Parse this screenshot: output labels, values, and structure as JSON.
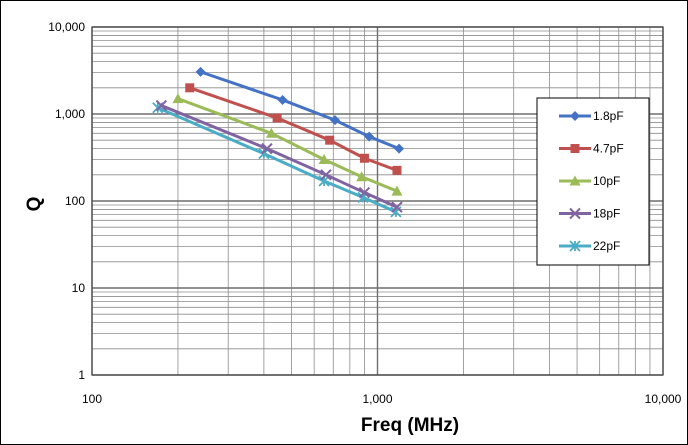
{
  "chart_data": {
    "type": "line",
    "title": "",
    "xlabel": "Freq (MHz)",
    "ylabel": "Q",
    "xscale": "log",
    "yscale": "log",
    "xlim": [
      100,
      10000
    ],
    "ylim": [
      1,
      10000
    ],
    "x_tick_labels": [
      "100",
      "1,000",
      "10,000"
    ],
    "y_tick_labels": [
      "1",
      "10",
      "100",
      "1,000",
      "10,000"
    ],
    "grid": true,
    "legend_position": "right",
    "series": [
      {
        "name": "1.8pF",
        "color": "#4472C4",
        "marker": "diamond",
        "x": [
          240,
          465,
          710,
          935,
          1190
        ],
        "y": [
          3050,
          1450,
          850,
          550,
          400
        ]
      },
      {
        "name": "4.7pF",
        "color": "#C0504D",
        "marker": "square",
        "x": [
          220,
          445,
          680,
          900,
          1170
        ],
        "y": [
          2000,
          900,
          500,
          310,
          225
        ]
      },
      {
        "name": "10pF",
        "color": "#9BBB59",
        "marker": "triangle",
        "x": [
          200,
          425,
          650,
          880,
          1170
        ],
        "y": [
          1500,
          600,
          300,
          190,
          130
        ]
      },
      {
        "name": "18pF",
        "color": "#8064A2",
        "marker": "x",
        "x": [
          175,
          410,
          660,
          900,
          1170
        ],
        "y": [
          1250,
          400,
          200,
          125,
          85
        ]
      },
      {
        "name": "22pF",
        "color": "#4BACC6",
        "marker": "asterisk",
        "x": [
          170,
          400,
          650,
          890,
          1160
        ],
        "y": [
          1180,
          350,
          170,
          110,
          75
        ]
      }
    ]
  }
}
